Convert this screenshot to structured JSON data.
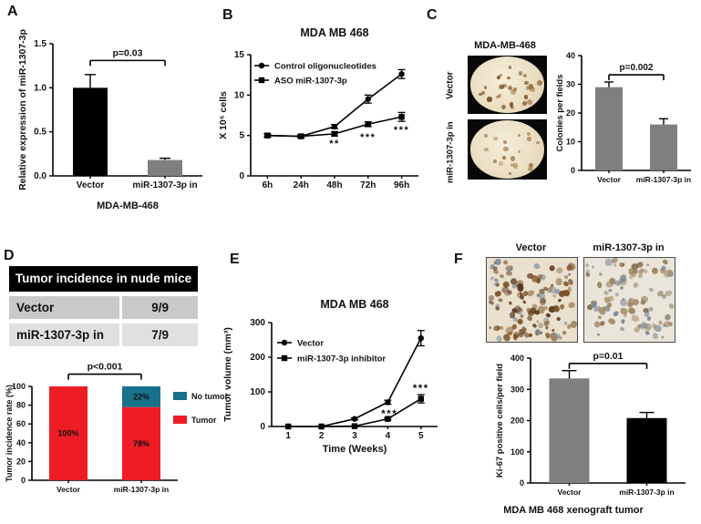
{
  "panels": {
    "A": {
      "label": "A"
    },
    "B": {
      "label": "B"
    },
    "C": {
      "label": "C",
      "images_title": "MDA-MB-468",
      "image_labels": [
        "Vector",
        "miR-1307-3p in"
      ]
    },
    "D": {
      "label": "D",
      "table": {
        "header": "Tumor incidence in nude mice",
        "rows": [
          [
            "Vector",
            "9/9"
          ],
          [
            "miR-1307-3p in",
            "7/9"
          ]
        ]
      }
    },
    "E": {
      "label": "E"
    },
    "F": {
      "label": "F",
      "image_labels": [
        "Vector",
        "miR-1307-3p in"
      ],
      "caption": "MDA MB 468 xenograft tumor"
    }
  },
  "colors": {
    "tumor_red": "#ee1c25",
    "no_tumor_teal": "#17718a",
    "bar_black": "#000000",
    "bar_gray": "#7f7f7f"
  },
  "chart_data": [
    {
      "id": "A",
      "type": "bar",
      "ylabel": "Relative expression of miR-1307-3p",
      "xlabel": "MDA-MB-468",
      "ylim": [
        0,
        1.5
      ],
      "yticks": [
        "0.0",
        "0.5",
        "1.0",
        "1.5"
      ],
      "categories": [
        "Vector",
        "miR-1307-3p in"
      ],
      "values": [
        1.0,
        0.18
      ],
      "errors": [
        0.15,
        0.02
      ],
      "bar_colors": [
        "#000000",
        "#7f7f7f"
      ],
      "significance": {
        "text": "p=0.03",
        "level": 1.31
      }
    },
    {
      "id": "B",
      "type": "line",
      "title": "MDA MB 468",
      "ylabel": "X 10⁵ cells",
      "ylim": [
        0,
        15
      ],
      "yticks": [
        0,
        5,
        10,
        15
      ],
      "categories": [
        "6h",
        "24h",
        "48h",
        "72h",
        "96h"
      ],
      "series": [
        {
          "name": "Control oligonucleotides",
          "marker": "circle",
          "values": [
            5.0,
            4.9,
            6.1,
            9.5,
            12.6
          ],
          "errors": [
            0.2,
            0.2,
            0.25,
            0.5,
            0.55
          ]
        },
        {
          "name": "ASO miR-1307-3p",
          "marker": "square",
          "values": [
            5.0,
            4.9,
            5.2,
            6.4,
            7.3
          ],
          "errors": [
            0.2,
            0.2,
            0.25,
            0.3,
            0.55
          ]
        }
      ],
      "annotations": [
        {
          "text": "**",
          "x": 2,
          "y": 3.6
        },
        {
          "text": "***",
          "x": 3,
          "y": 4.4
        },
        {
          "text": "***",
          "x": 4,
          "y": 5.3
        }
      ]
    },
    {
      "id": "C",
      "type": "bar",
      "ylabel": "Colonies per fields",
      "ylim": [
        0,
        40
      ],
      "yticks": [
        0,
        10,
        20,
        30,
        40
      ],
      "categories": [
        "Vector",
        "miR-1307-3p in"
      ],
      "values": [
        29,
        16
      ],
      "errors": [
        1.8,
        2.0
      ],
      "bar_colors": [
        "#7f7f7f",
        "#7f7f7f"
      ],
      "significance": {
        "text": "p=0.002",
        "level": 33.3
      }
    },
    {
      "id": "D",
      "type": "stacked-bar",
      "ylabel": "Tumor incidence rate (%)",
      "ylim": [
        0,
        100
      ],
      "yticks": [
        0,
        20,
        40,
        60,
        80,
        100
      ],
      "categories": [
        "Vector",
        "miR-1307-3p in"
      ],
      "series": [
        {
          "name": "Tumor",
          "color": "#ee1c25",
          "values": [
            100,
            78
          ],
          "segment_labels": [
            "100%",
            "78%"
          ]
        },
        {
          "name": "No tumor",
          "color": "#17718a",
          "values": [
            0,
            22
          ],
          "segment_labels": [
            "",
            "22%"
          ]
        }
      ],
      "legend": [
        "No tumor",
        "Tumor"
      ],
      "significance": {
        "text": "p<0.001",
        "level": 113
      }
    },
    {
      "id": "E",
      "type": "line",
      "title": "MDA MB 468",
      "ylabel": "Tumor volume (mm³)",
      "xlabel": "Time (Weeks)",
      "ylim": [
        0,
        300
      ],
      "yticks": [
        0,
        100,
        200,
        300
      ],
      "categories": [
        "1",
        "2",
        "3",
        "4",
        "5"
      ],
      "series": [
        {
          "name": "Vector",
          "marker": "circle",
          "values": [
            0,
            0,
            22,
            70,
            255
          ],
          "errors": [
            0,
            0,
            3,
            6,
            22
          ]
        },
        {
          "name": "miR-1307-3p inhibitor",
          "marker": "square",
          "values": [
            0,
            0,
            1,
            22,
            80
          ],
          "errors": [
            0,
            0,
            1,
            3,
            12
          ]
        }
      ],
      "annotations": [
        {
          "text": "***",
          "x": 3.05,
          "y": 26
        },
        {
          "text": "***",
          "x": 4.0,
          "y": 100
        }
      ]
    },
    {
      "id": "F",
      "type": "bar",
      "ylabel": "Ki-67 positive cells/per field",
      "ylim": [
        0,
        400
      ],
      "yticks": [
        0,
        100,
        200,
        300,
        400
      ],
      "categories": [
        "Vector",
        "miR-1307-3p in"
      ],
      "values": [
        335,
        208
      ],
      "errors": [
        25,
        18
      ],
      "bar_colors": [
        "#7f7f7f",
        "#000000"
      ],
      "significance": {
        "text": "p=0.01",
        "level": 383
      }
    }
  ]
}
